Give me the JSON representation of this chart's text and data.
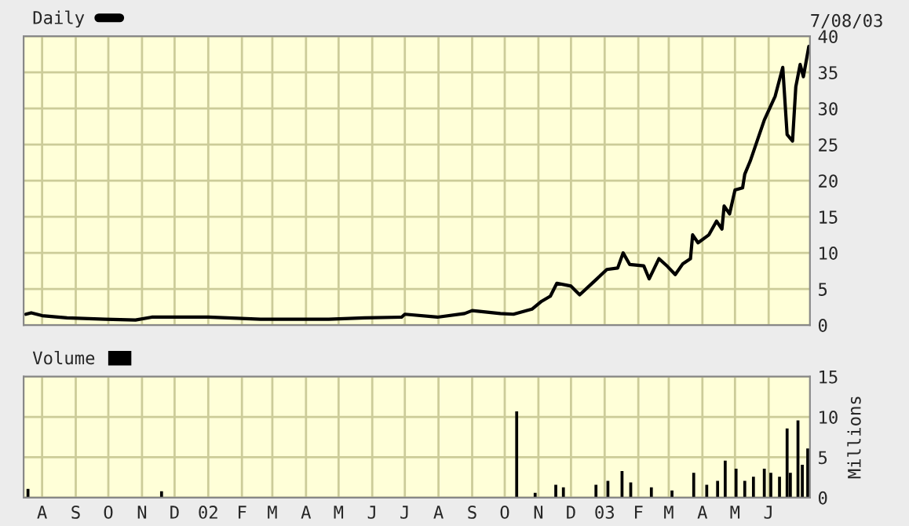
{
  "chart_data": [
    {
      "type": "line",
      "legend": "top left",
      "grid": true,
      "tick_labels": "y",
      "annotations": [
        "7/08/03"
      ],
      "xlim": [
        "2001-07-15",
        "2003-07-09"
      ],
      "xticks": [
        {
          "value": "2001-08-01",
          "label": null
        },
        {
          "value": "2001-09-01",
          "label": null
        },
        {
          "value": "2001-10-01",
          "label": null
        },
        {
          "value": "2001-11-01",
          "label": null
        },
        {
          "value": "2001-12-01",
          "label": null
        },
        {
          "value": "2002-01-01",
          "label": null
        },
        {
          "value": "2002-02-01",
          "label": null
        },
        {
          "value": "2002-03-01",
          "label": null
        },
        {
          "value": "2002-04-01",
          "label": null
        },
        {
          "value": "2002-05-01",
          "label": null
        },
        {
          "value": "2002-06-01",
          "label": null
        },
        {
          "value": "2002-07-01",
          "label": null
        },
        {
          "value": "2002-08-01",
          "label": null
        },
        {
          "value": "2002-09-01",
          "label": null
        },
        {
          "value": "2002-10-01",
          "label": null
        },
        {
          "value": "2002-11-01",
          "label": null
        },
        {
          "value": "2002-12-01",
          "label": null
        },
        {
          "value": "2003-01-01",
          "label": null
        },
        {
          "value": "2003-02-01",
          "label": null
        },
        {
          "value": "2003-03-01",
          "label": null
        },
        {
          "value": "2003-04-01",
          "label": null
        },
        {
          "value": "2003-05-01",
          "label": null
        },
        {
          "value": "2003-06-01",
          "label": null
        }
      ],
      "ylim": [
        0,
        40
      ],
      "yticks": [
        0,
        5,
        10,
        15,
        20,
        25,
        30,
        35,
        40
      ],
      "series": [
        {
          "name": "Daily",
          "color": "#000000",
          "x": [
            "2001-07-17",
            "2001-07-22",
            "2001-08-01",
            "2001-08-24",
            "2001-09-28",
            "2001-10-26",
            "2001-11-10",
            "2002-01-01",
            "2002-02-18",
            "2002-04-22",
            "2002-05-25",
            "2002-06-28",
            "2002-07-01",
            "2002-07-31",
            "2002-08-25",
            "2002-09-01",
            "2002-09-27",
            "2002-10-09",
            "2002-10-26",
            "2002-11-04",
            "2002-11-12",
            "2002-11-18",
            "2002-12-01",
            "2002-12-09",
            "2002-12-22",
            "2003-01-03",
            "2003-01-13",
            "2003-01-18",
            "2003-01-24",
            "2003-02-06",
            "2003-02-11",
            "2003-02-20",
            "2003-02-28",
            "2003-03-07",
            "2003-03-14",
            "2003-03-21",
            "2003-03-23",
            "2003-03-28",
            "2003-04-07",
            "2003-04-14",
            "2003-04-19",
            "2003-04-21",
            "2003-04-26",
            "2003-05-01",
            "2003-05-08",
            "2003-05-10",
            "2003-05-15",
            "2003-05-28",
            "2003-06-07",
            "2003-06-14",
            "2003-06-18",
            "2003-06-23",
            "2003-06-26",
            "2003-06-30",
            "2003-07-03",
            "2003-07-08"
          ],
          "values": [
            1.5,
            1.7,
            1.3,
            1.0,
            0.8,
            0.7,
            1.1,
            1.1,
            0.8,
            0.8,
            1.0,
            1.1,
            1.5,
            1.1,
            1.6,
            2.0,
            1.6,
            1.5,
            2.2,
            3.3,
            4.0,
            5.8,
            5.4,
            4.2,
            6.0,
            7.7,
            7.9,
            10.0,
            8.4,
            8.2,
            6.4,
            9.2,
            8.1,
            7.0,
            8.5,
            9.2,
            12.5,
            11.4,
            12.5,
            14.4,
            13.3,
            16.5,
            15.4,
            18.7,
            19.0,
            20.9,
            22.7,
            28.4,
            31.7,
            35.7,
            26.4,
            25.5,
            33,
            36.1,
            34.4,
            38.6
          ]
        }
      ]
    },
    {
      "type": "bar",
      "legend": "top left",
      "grid": true,
      "ylabel": "Millions",
      "xlim": [
        "2001-07-15",
        "2003-07-09"
      ],
      "xticks": [
        {
          "value": "2001-08-01",
          "label": "A"
        },
        {
          "value": "2001-09-01",
          "label": "S"
        },
        {
          "value": "2001-10-01",
          "label": "O"
        },
        {
          "value": "2001-11-01",
          "label": "N"
        },
        {
          "value": "2001-12-01",
          "label": "D"
        },
        {
          "value": "2002-01-01",
          "label": "02"
        },
        {
          "value": "2002-02-01",
          "label": "F"
        },
        {
          "value": "2002-03-01",
          "label": "M"
        },
        {
          "value": "2002-04-01",
          "label": "A"
        },
        {
          "value": "2002-05-01",
          "label": "M"
        },
        {
          "value": "2002-06-01",
          "label": "J"
        },
        {
          "value": "2002-07-01",
          "label": "J"
        },
        {
          "value": "2002-08-01",
          "label": "A"
        },
        {
          "value": "2002-09-01",
          "label": "S"
        },
        {
          "value": "2002-10-01",
          "label": "O"
        },
        {
          "value": "2002-11-01",
          "label": "N"
        },
        {
          "value": "2002-12-01",
          "label": "D"
        },
        {
          "value": "2003-01-01",
          "label": "03"
        },
        {
          "value": "2003-02-01",
          "label": "F"
        },
        {
          "value": "2003-03-01",
          "label": "M"
        },
        {
          "value": "2003-04-01",
          "label": "A"
        },
        {
          "value": "2003-05-01",
          "label": "M"
        },
        {
          "value": "2003-06-01",
          "label": "J"
        }
      ],
      "ylim": [
        0,
        15
      ],
      "yticks": [
        0,
        5,
        10,
        15
      ],
      "series": [
        {
          "name": "Volume",
          "color": "#000000",
          "x": [
            "2001-07-19",
            "2001-11-19",
            "2002-10-12",
            "2002-10-29",
            "2002-11-17",
            "2002-11-24",
            "2002-12-24",
            "2003-01-04",
            "2003-01-17",
            "2003-01-25",
            "2003-02-13",
            "2003-03-04",
            "2003-03-24",
            "2003-04-05",
            "2003-04-15",
            "2003-04-22",
            "2003-05-02",
            "2003-05-10",
            "2003-05-18",
            "2003-05-28",
            "2003-06-03",
            "2003-06-11",
            "2003-06-18",
            "2003-06-21",
            "2003-06-28",
            "2003-07-02",
            "2003-07-07"
          ],
          "values": [
            1.0,
            0.7,
            10.6,
            0.5,
            1.5,
            1.2,
            1.5,
            2.0,
            3.2,
            1.8,
            1.2,
            0.8,
            3.0,
            1.5,
            2.0,
            4.5,
            3.5,
            2.0,
            2.5,
            3.5,
            3.0,
            2.5,
            8.5,
            3.0,
            9.5,
            4.0,
            6.0
          ]
        }
      ]
    }
  ]
}
